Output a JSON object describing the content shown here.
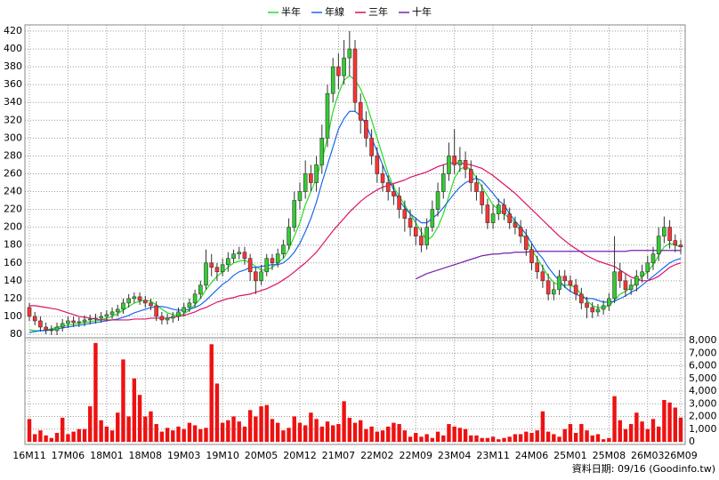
{
  "chart_data": [
    {
      "type": "candlestick",
      "categories": [
        "16M11",
        null,
        null,
        null,
        null,
        null,
        null,
        "17M06",
        null,
        null,
        null,
        null,
        null,
        null,
        "18M01",
        null,
        null,
        null,
        null,
        null,
        null,
        "18M08",
        null,
        null,
        null,
        null,
        null,
        null,
        "19M03",
        null,
        null,
        null,
        null,
        null,
        null,
        "19M10",
        null,
        null,
        null,
        null,
        null,
        null,
        "20M05",
        null,
        null,
        null,
        null,
        null,
        null,
        "20M12",
        null,
        null,
        null,
        null,
        null,
        null,
        "21M07",
        null,
        null,
        null,
        null,
        null,
        null,
        "22M02",
        null,
        null,
        null,
        null,
        null,
        null,
        "22M09",
        null,
        null,
        null,
        null,
        null,
        null,
        "23M04",
        null,
        null,
        null,
        null,
        null,
        null,
        "23M11",
        null,
        null,
        null,
        null,
        null,
        null,
        "24M06",
        null,
        null,
        null,
        null,
        null,
        null,
        "25M01",
        null,
        null,
        null,
        null,
        null,
        null,
        "25M08",
        null,
        null,
        null,
        null,
        null,
        null,
        "26M03",
        null,
        null,
        null,
        null,
        null,
        "26M09"
      ],
      "open": [
        110,
        100,
        95,
        88,
        85,
        84,
        88,
        92,
        95,
        93,
        94,
        96,
        97,
        98,
        100,
        102,
        105,
        108,
        115,
        120,
        122,
        118,
        115,
        112,
        100,
        96,
        98,
        100,
        105,
        110,
        115,
        125,
        135,
        160,
        155,
        150,
        158,
        165,
        170,
        172,
        165,
        150,
        140,
        150,
        165,
        160,
        170,
        180,
        200,
        230,
        240,
        260,
        250,
        270,
        300,
        350,
        380,
        370,
        390,
        400,
        340,
        320,
        300,
        280,
        260,
        250,
        240,
        235,
        220,
        210,
        200,
        190,
        180,
        200,
        220,
        240,
        260,
        280,
        270,
        275,
        265,
        250,
        240,
        225,
        205,
        215,
        225,
        215,
        205,
        200,
        190,
        175,
        160,
        150,
        140,
        125,
        130,
        145,
        140,
        135,
        125,
        115,
        110,
        105,
        108,
        112,
        120,
        150,
        140,
        130,
        135,
        145,
        150,
        160,
        170,
        190,
        200,
        185,
        180
      ],
      "high": [
        115,
        105,
        100,
        93,
        90,
        93,
        97,
        100,
        100,
        99,
        101,
        102,
        103,
        105,
        107,
        110,
        113,
        120,
        125,
        127,
        127,
        123,
        120,
        117,
        105,
        103,
        105,
        110,
        115,
        120,
        130,
        140,
        175,
        170,
        160,
        165,
        172,
        175,
        178,
        178,
        170,
        155,
        158,
        170,
        170,
        176,
        186,
        210,
        240,
        250,
        275,
        270,
        280,
        315,
        360,
        390,
        395,
        410,
        420,
        410,
        350,
        330,
        310,
        290,
        270,
        258,
        248,
        245,
        230,
        220,
        210,
        200,
        210,
        230,
        250,
        270,
        295,
        310,
        290,
        285,
        275,
        258,
        248,
        232,
        225,
        232,
        232,
        222,
        212,
        208,
        198,
        182,
        168,
        158,
        148,
        138,
        152,
        152,
        146,
        142,
        132,
        122,
        116,
        114,
        118,
        126,
        190,
        160,
        148,
        142,
        152,
        158,
        168,
        178,
        200,
        212,
        208,
        192,
        186
      ],
      "low": [
        95,
        90,
        83,
        80,
        79,
        79,
        83,
        87,
        88,
        88,
        89,
        91,
        92,
        93,
        95,
        97,
        100,
        103,
        110,
        115,
        113,
        110,
        107,
        95,
        91,
        91,
        93,
        95,
        100,
        105,
        110,
        120,
        130,
        145,
        140,
        145,
        150,
        160,
        164,
        158,
        140,
        125,
        135,
        145,
        152,
        155,
        165,
        175,
        195,
        220,
        232,
        240,
        240,
        260,
        290,
        340,
        355,
        360,
        370,
        330,
        305,
        290,
        270,
        250,
        240,
        230,
        225,
        210,
        195,
        190,
        180,
        172,
        175,
        195,
        212,
        232,
        252,
        260,
        262,
        255,
        240,
        230,
        215,
        198,
        198,
        208,
        208,
        198,
        192,
        182,
        168,
        152,
        142,
        132,
        118,
        118,
        124,
        132,
        128,
        118,
        108,
        98,
        98,
        100,
        102,
        106,
        115,
        132,
        122,
        124,
        128,
        138,
        142,
        152,
        162,
        182,
        176,
        172,
        170
      ],
      "close": [
        100,
        95,
        88,
        85,
        84,
        88,
        92,
        95,
        93,
        94,
        96,
        97,
        98,
        100,
        102,
        105,
        108,
        115,
        120,
        122,
        118,
        115,
        112,
        100,
        96,
        98,
        100,
        105,
        110,
        115,
        125,
        135,
        160,
        155,
        150,
        158,
        165,
        170,
        172,
        165,
        150,
        140,
        150,
        165,
        160,
        170,
        180,
        200,
        230,
        240,
        260,
        250,
        270,
        300,
        350,
        380,
        370,
        390,
        400,
        340,
        320,
        300,
        280,
        260,
        250,
        240,
        235,
        220,
        210,
        200,
        190,
        180,
        200,
        220,
        240,
        260,
        280,
        270,
        275,
        265,
        250,
        240,
        225,
        205,
        215,
        225,
        215,
        205,
        200,
        190,
        175,
        160,
        150,
        140,
        125,
        130,
        145,
        140,
        135,
        125,
        115,
        110,
        105,
        108,
        112,
        120,
        150,
        140,
        130,
        135,
        145,
        150,
        160,
        170,
        190,
        200,
        185,
        180,
        178
      ],
      "up_color": "#33cc33",
      "down_color": "#ff3333",
      "series": [
        {
          "name": "半年",
          "color": "#22dd22",
          "values": [
            85,
            84,
            84,
            85,
            86,
            88,
            89,
            90,
            91,
            92,
            93,
            94,
            95,
            96,
            98,
            100,
            103,
            107,
            111,
            115,
            117,
            118,
            117,
            113,
            108,
            104,
            102,
            101,
            103,
            107,
            113,
            120,
            130,
            138,
            145,
            150,
            155,
            160,
            162,
            163,
            160,
            156,
            152,
            152,
            155,
            160,
            165,
            175,
            190,
            205,
            225,
            240,
            255,
            275,
            300,
            330,
            350,
            365,
            370,
            365,
            355,
            340,
            320,
            300,
            280,
            260,
            245,
            235,
            225,
            215,
            205,
            195,
            185,
            190,
            200,
            215,
            235,
            255,
            265,
            268,
            265,
            255,
            245,
            235,
            225,
            220,
            215,
            210,
            205,
            195,
            185,
            175,
            165,
            155,
            145,
            138,
            135,
            135,
            135,
            132,
            125,
            118,
            112,
            110,
            110,
            112,
            118,
            125,
            128,
            132,
            138,
            145,
            150,
            158,
            168,
            178,
            182,
            180,
            178
          ]
        },
        {
          "name": "年線",
          "color": "#1a66ee",
          "values": [
            82,
            83,
            84,
            84,
            85,
            86,
            87,
            88,
            89,
            90,
            91,
            92,
            93,
            94,
            95,
            96,
            97,
            99,
            101,
            104,
            106,
            108,
            110,
            111,
            111,
            110,
            108,
            107,
            107,
            108,
            110,
            113,
            118,
            124,
            130,
            136,
            140,
            146,
            150,
            152,
            155,
            155,
            156,
            157,
            158,
            158,
            160,
            165,
            172,
            182,
            195,
            210,
            228,
            250,
            270,
            290,
            310,
            322,
            330,
            330,
            325,
            315,
            300,
            285,
            270,
            255,
            242,
            230,
            222,
            215,
            210,
            205,
            205,
            210,
            215,
            222,
            230,
            238,
            245,
            250,
            253,
            255,
            252,
            245,
            238,
            230,
            225,
            215,
            207,
            200,
            192,
            182,
            172,
            165,
            155,
            147,
            140,
            133,
            128,
            125,
            122,
            120,
            120,
            118,
            116,
            116,
            117,
            120,
            123,
            127,
            130,
            135,
            140,
            145,
            150,
            155,
            160,
            163,
            165
          ]
        },
        {
          "name": "三年",
          "color": "#dd1166",
          "values": [
            112,
            112,
            111,
            110,
            109,
            108,
            106,
            104,
            102,
            100,
            99,
            98,
            97,
            96,
            96,
            96,
            96,
            96,
            96,
            97,
            97,
            97,
            98,
            98,
            98,
            98,
            99,
            100,
            101,
            103,
            105,
            108,
            110,
            113,
            116,
            118,
            120,
            121,
            123,
            124,
            125,
            127,
            129,
            131,
            134,
            137,
            141,
            145,
            150,
            155,
            160,
            166,
            172,
            180,
            188,
            196,
            203,
            210,
            217,
            223,
            229,
            234,
            238,
            242,
            245,
            247,
            249,
            251,
            253,
            256,
            258,
            260,
            262,
            265,
            268,
            270,
            272,
            272,
            272,
            271,
            270,
            268,
            266,
            262,
            258,
            253,
            248,
            243,
            238,
            232,
            226,
            220,
            214,
            208,
            202,
            196,
            190,
            185,
            180,
            176,
            172,
            168,
            165,
            162,
            160,
            158,
            156,
            152,
            148,
            144,
            142,
            140,
            140,
            142,
            145,
            150,
            155,
            158,
            160
          ]
        },
        {
          "name": "十年",
          "color": "#7722aa",
          "values": [
            null,
            null,
            null,
            null,
            null,
            null,
            null,
            null,
            null,
            null,
            null,
            null,
            null,
            null,
            null,
            null,
            null,
            null,
            null,
            null,
            null,
            null,
            null,
            null,
            null,
            null,
            null,
            null,
            null,
            null,
            null,
            null,
            null,
            null,
            null,
            null,
            null,
            null,
            null,
            null,
            null,
            null,
            null,
            null,
            null,
            null,
            null,
            null,
            null,
            null,
            null,
            null,
            null,
            null,
            null,
            null,
            null,
            null,
            null,
            null,
            null,
            null,
            null,
            null,
            null,
            null,
            null,
            null,
            null,
            null,
            142,
            145,
            148,
            150,
            152,
            154,
            156,
            158,
            160,
            162,
            164,
            166,
            168,
            169,
            170,
            170,
            171,
            171,
            172,
            172,
            172,
            173,
            173,
            173,
            173,
            173,
            173,
            173,
            173,
            173,
            173,
            173,
            173,
            173,
            173,
            173,
            173,
            173,
            173,
            174,
            174,
            174,
            174,
            174,
            174,
            174,
            174,
            174,
            174
          ]
        }
      ],
      "ylim": [
        76,
        427
      ],
      "yticks": [
        80,
        100,
        120,
        140,
        160,
        180,
        200,
        220,
        240,
        260,
        280,
        300,
        320,
        340,
        360,
        380,
        400,
        420
      ],
      "grid": true,
      "footnote": "資料日期: 09/16 (Goodinfo.tw)"
    },
    {
      "type": "bar",
      "color": "#ee1111",
      "values": [
        1800,
        600,
        900,
        500,
        300,
        700,
        1900,
        600,
        800,
        1000,
        1000,
        2800,
        7800,
        1700,
        1200,
        900,
        2300,
        6500,
        2000,
        5000,
        3700,
        2000,
        2400,
        1400,
        800,
        1100,
        900,
        1200,
        1000,
        1500,
        1300,
        1000,
        1100,
        7700,
        4600,
        1500,
        1700,
        2000,
        1600,
        1200,
        2500,
        2000,
        2800,
        2900,
        1800,
        1500,
        900,
        1100,
        2000,
        1500,
        1300,
        2300,
        1800,
        1200,
        1600,
        1300,
        1400,
        3200,
        1900,
        1500,
        1700,
        1000,
        1200,
        800,
        900,
        1200,
        1500,
        1400,
        900,
        400,
        700,
        400,
        600,
        300,
        800,
        500,
        1400,
        1200,
        1100,
        1000,
        500,
        500,
        300,
        300,
        400,
        200,
        300,
        400,
        600,
        600,
        800,
        700,
        900,
        2400,
        800,
        600,
        400,
        1000,
        1400,
        700,
        1400,
        900,
        500,
        600,
        200,
        300,
        3600,
        1700,
        1000,
        1400,
        2300,
        1600,
        1000,
        1800,
        1200,
        3300,
        3100,
        2700,
        1900
      ],
      "ylim": [
        0,
        8000
      ],
      "yticks": [
        0,
        {
          "value": 1000,
          "label": "1,000"
        },
        {
          "value": 2000,
          "label": "2,000"
        },
        {
          "value": 3000,
          "label": "3,000"
        },
        {
          "value": 4000,
          "label": "4,000"
        },
        {
          "value": 5000,
          "label": "5,000"
        },
        {
          "value": 6000,
          "label": "6,000"
        },
        {
          "value": 7000,
          "label": "7,000"
        },
        {
          "value": 8000,
          "label": "8,000"
        }
      ],
      "grid": true
    }
  ]
}
